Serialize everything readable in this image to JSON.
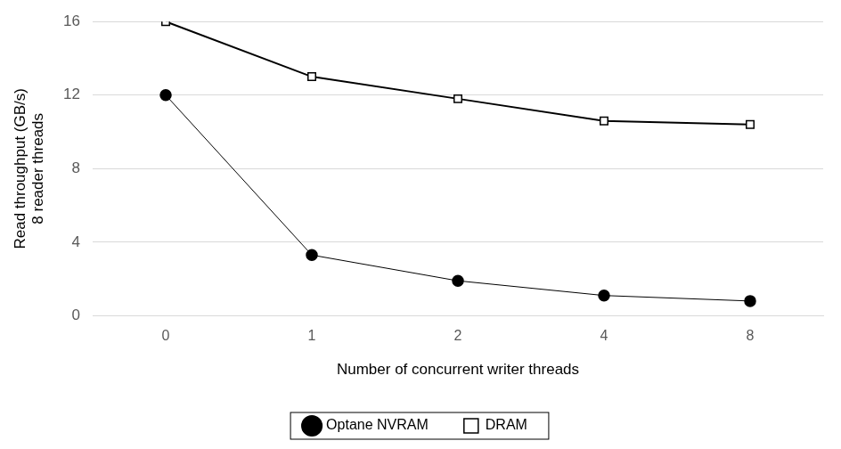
{
  "chart_data": {
    "type": "line",
    "x_label": "Number of concurrent writer threads",
    "y_label": [
      "Read throughput (GB/s)",
      "8 reader threads"
    ],
    "categories": [
      "0",
      "1",
      "2",
      "4",
      "8"
    ],
    "series": [
      {
        "name": "Optane NVRAM",
        "color": "#000000",
        "marker": "circle",
        "values": [
          12,
          3.3,
          1.9,
          1.1,
          0.8
        ]
      },
      {
        "name": "DRAM",
        "color": "#000000",
        "marker": "open-square",
        "values": [
          16,
          13,
          11.8,
          10.6,
          10.4
        ]
      }
    ],
    "ylim": [
      0,
      16
    ],
    "yticks": [
      0,
      4,
      8,
      12,
      16
    ],
    "grid": true,
    "legend": "bottom"
  }
}
